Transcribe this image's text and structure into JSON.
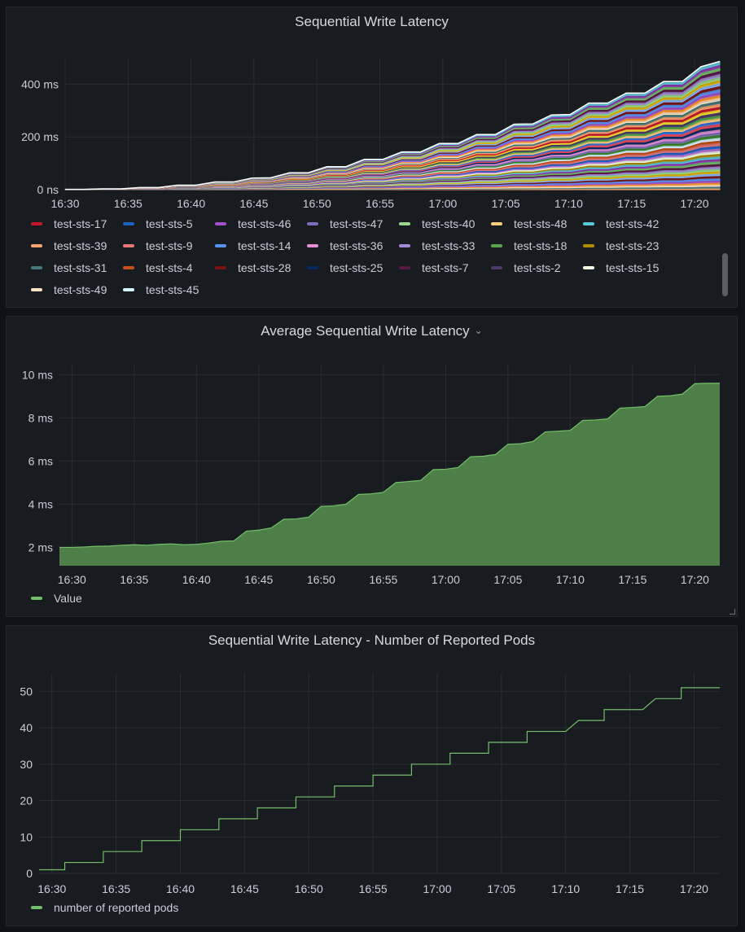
{
  "panels": [
    {
      "title": "Sequential Write Latency",
      "has_menu": false,
      "chart_data": {
        "type": "line",
        "stacked": true,
        "x_ticks": [
          "16:30",
          "16:35",
          "16:40",
          "16:45",
          "16:50",
          "16:55",
          "17:00",
          "17:05",
          "17:10",
          "17:15",
          "17:20"
        ],
        "x_range": [
          "16:30",
          "17:22"
        ],
        "y_ticks": [
          "0 ns",
          "200 ms",
          "400 ms"
        ],
        "ylim": [
          0,
          500
        ],
        "y_unit": "ms",
        "grid": true,
        "legend_position": "bottom",
        "total_values": [
          1,
          1,
          3,
          3,
          8,
          8,
          17,
          17,
          29,
          29,
          44,
          45,
          64,
          64,
          87,
          87,
          115,
          115,
          143,
          143,
          175,
          175,
          209,
          209,
          248,
          249,
          283,
          285,
          328,
          328,
          366,
          366,
          410,
          410,
          466,
          486
        ],
        "series": [
          {
            "name": "test-sts-17",
            "color": "#c4162a"
          },
          {
            "name": "test-sts-5",
            "color": "#1f60c4"
          },
          {
            "name": "test-sts-46",
            "color": "#a352cc"
          },
          {
            "name": "test-sts-47",
            "color": "#806eb7"
          },
          {
            "name": "test-sts-40",
            "color": "#96d98d"
          },
          {
            "name": "test-sts-48",
            "color": "#ffcb7d"
          },
          {
            "name": "test-sts-42",
            "color": "#5ac8d8"
          },
          {
            "name": "test-sts-39",
            "color": "#ffa36e"
          },
          {
            "name": "test-sts-9",
            "color": "#e87778"
          },
          {
            "name": "test-sts-14",
            "color": "#5794f2"
          },
          {
            "name": "test-sts-36",
            "color": "#e28fd8"
          },
          {
            "name": "test-sts-33",
            "color": "#a18ad6"
          },
          {
            "name": "test-sts-18",
            "color": "#56a64b"
          },
          {
            "name": "test-sts-23",
            "color": "#b08b00"
          },
          {
            "name": "test-sts-31",
            "color": "#447a7d"
          },
          {
            "name": "test-sts-4",
            "color": "#c9501c"
          },
          {
            "name": "test-sts-28",
            "color": "#7a1414"
          },
          {
            "name": "test-sts-25",
            "color": "#0a2a5e"
          },
          {
            "name": "test-sts-7",
            "color": "#5c1846"
          },
          {
            "name": "test-sts-2",
            "color": "#4b3a6b"
          },
          {
            "name": "test-sts-15",
            "color": "#f1ffe0"
          },
          {
            "name": "test-sts-49",
            "color": "#fde3c3"
          },
          {
            "name": "test-sts-45",
            "color": "#d4f4ff"
          }
        ]
      }
    },
    {
      "title": "Average Sequential Write Latency",
      "has_menu": true,
      "chart_data": {
        "type": "area",
        "x_ticks": [
          "16:30",
          "16:35",
          "16:40",
          "16:45",
          "16:50",
          "16:55",
          "17:00",
          "17:05",
          "17:10",
          "17:15",
          "17:20"
        ],
        "x_range": [
          "16:29",
          "17:22"
        ],
        "y_ticks": [
          "2 ms",
          "4 ms",
          "6 ms",
          "8 ms",
          "10 ms"
        ],
        "ylim": [
          1.15,
          10.5
        ],
        "y_unit": "ms",
        "grid": true,
        "legend_position": "bottom-left",
        "series": [
          {
            "name": "Value",
            "color": "#73bf69",
            "x": [
              "16:29",
              "16:30",
              "16:31",
              "16:32",
              "16:33",
              "16:34",
              "16:35",
              "16:36",
              "16:37",
              "16:38",
              "16:39",
              "16:40",
              "16:41",
              "16:42",
              "16:43",
              "16:44",
              "16:45",
              "16:46",
              "16:47",
              "16:48",
              "16:49",
              "16:50",
              "16:51",
              "16:52",
              "16:53",
              "16:54",
              "16:55",
              "16:56",
              "16:57",
              "16:58",
              "16:59",
              "17:00",
              "17:01",
              "17:02",
              "17:03",
              "17:04",
              "17:05",
              "17:06",
              "17:07",
              "17:08",
              "17:09",
              "17:10",
              "17:11",
              "17:12",
              "17:13",
              "17:14",
              "17:15",
              "17:16",
              "17:17",
              "17:18",
              "17:19",
              "17:20",
              "17:21",
              "17:22"
            ],
            "values": [
              2.0,
              2.0,
              2.02,
              2.05,
              2.06,
              2.1,
              2.12,
              2.1,
              2.14,
              2.16,
              2.12,
              2.14,
              2.2,
              2.28,
              2.3,
              2.75,
              2.8,
              2.9,
              3.3,
              3.32,
              3.4,
              3.9,
              3.92,
              4.0,
              4.45,
              4.48,
              4.55,
              5.0,
              5.05,
              5.1,
              5.6,
              5.62,
              5.7,
              6.2,
              6.22,
              6.3,
              6.78,
              6.8,
              6.9,
              7.35,
              7.38,
              7.42,
              7.88,
              7.9,
              7.95,
              8.45,
              8.48,
              8.52,
              9.0,
              9.02,
              9.1,
              9.58,
              9.6,
              9.6
            ]
          }
        ]
      }
    },
    {
      "title": "Sequential Write Latency - Number of Reported Pods",
      "has_menu": false,
      "chart_data": {
        "type": "line",
        "x_ticks": [
          "16:30",
          "16:35",
          "16:40",
          "16:45",
          "16:50",
          "16:55",
          "17:00",
          "17:05",
          "17:10",
          "17:15",
          "17:20"
        ],
        "x_range": [
          "16:29",
          "17:22"
        ],
        "y_ticks": [
          "0",
          "10",
          "20",
          "30",
          "40",
          "50"
        ],
        "ylim": [
          0,
          55
        ],
        "grid": true,
        "legend_position": "bottom-left",
        "series": [
          {
            "name": "number of reported pods",
            "color": "#73bf69",
            "x": [
              "16:29",
              "16:31",
              "16:31",
              "16:34",
              "16:34",
              "16:37",
              "16:37",
              "16:40",
              "16:40",
              "16:43",
              "16:43",
              "16:46",
              "16:46",
              "16:49",
              "16:49",
              "16:52",
              "16:52",
              "16:55",
              "16:55",
              "16:58",
              "16:58",
              "17:01",
              "17:01",
              "17:04",
              "17:04",
              "17:07",
              "17:07",
              "17:10",
              "17:11",
              "17:13",
              "17:13",
              "17:16",
              "17:17",
              "17:19",
              "17:19",
              "17:22"
            ],
            "values": [
              1,
              1,
              3,
              3,
              6,
              6,
              9,
              9,
              12,
              12,
              15,
              15,
              18,
              18,
              21,
              21,
              24,
              24,
              27,
              27,
              30,
              30,
              33,
              33,
              36,
              36,
              39,
              39,
              42,
              42,
              45,
              45,
              48,
              48,
              51,
              51
            ]
          }
        ]
      }
    }
  ]
}
